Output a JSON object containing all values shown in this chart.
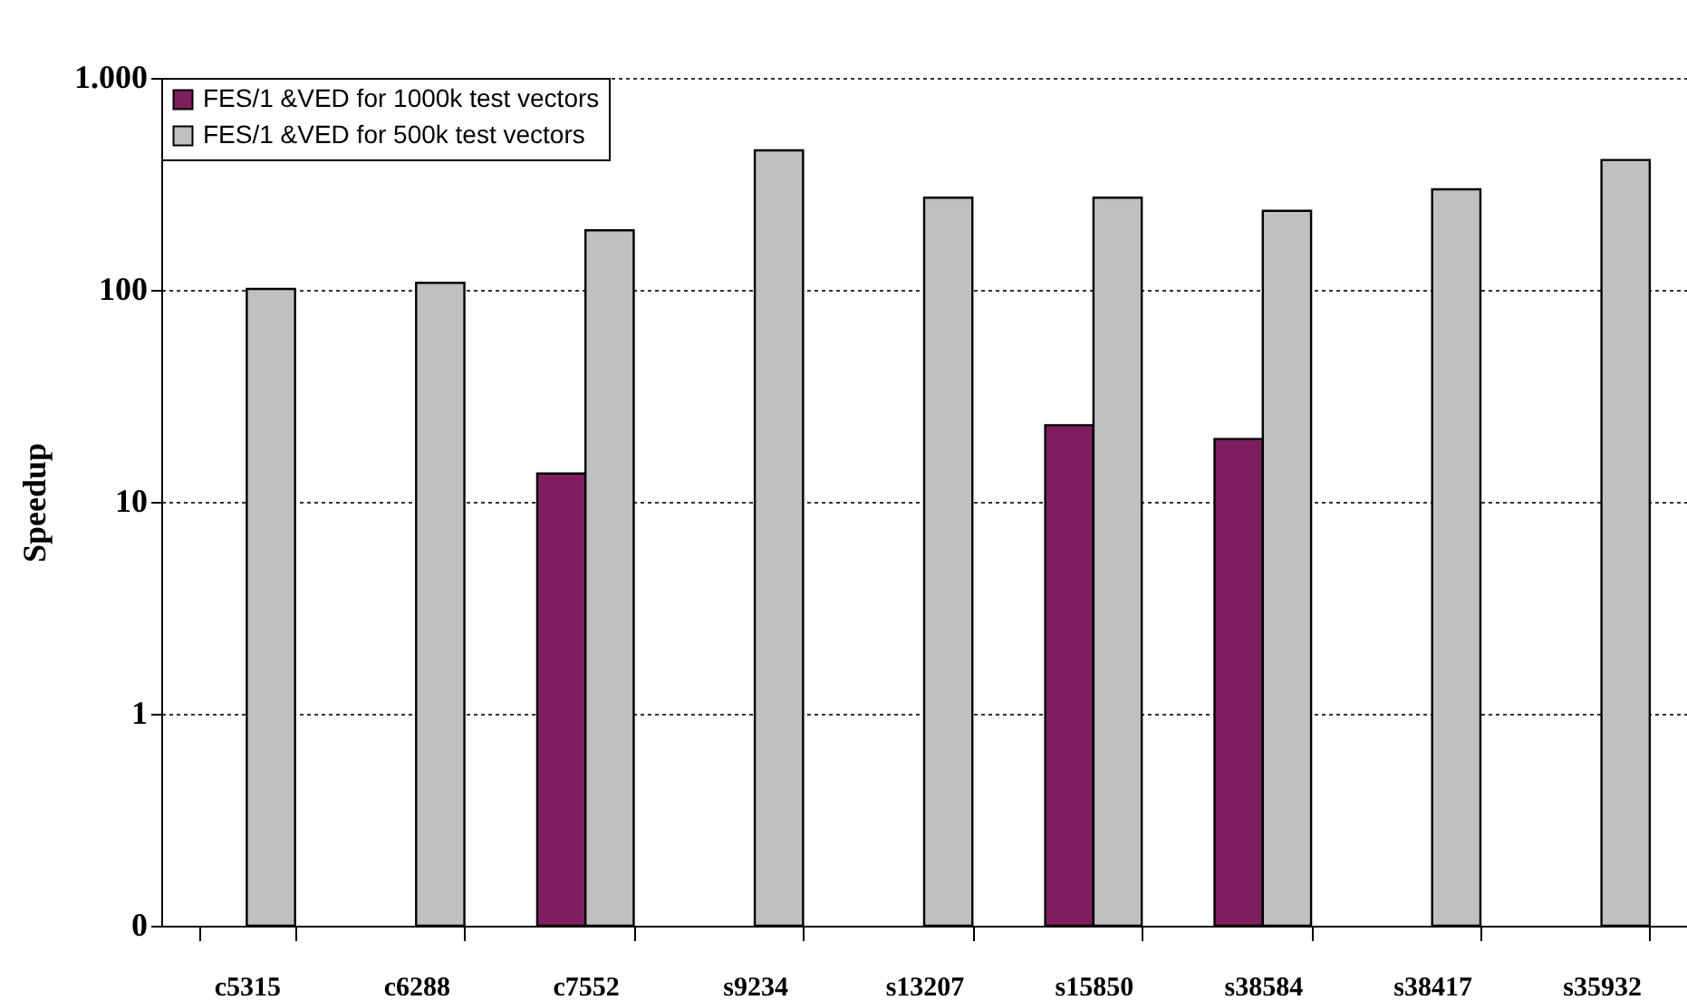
{
  "chart_data": {
    "type": "bar",
    "ylabel": "Speedup",
    "categories": [
      "c5315",
      "c6288",
      "c7552",
      "s9234",
      "s13207",
      "s15850",
      "s38584",
      "s38417",
      "s35932"
    ],
    "series": [
      {
        "name": "FES/1 &VED for 1000k test vectors",
        "color": "#7f1f5f",
        "values": [
          null,
          null,
          13.6,
          null,
          null,
          23,
          19.8,
          null,
          null
        ]
      },
      {
        "name": "FES/1 &VED for 500k test vectors",
        "color": "#c0c0c0",
        "values": [
          101,
          108,
          191,
          455,
          272,
          272,
          236,
          298,
          410
        ]
      }
    ],
    "log": true,
    "ylim": [
      0.1,
      1000
    ],
    "yticks": [
      {
        "value": 0.1,
        "label": "0"
      },
      1,
      10,
      100,
      {
        "value": 1000,
        "label": "1.000"
      }
    ],
    "grid": "y",
    "legend": "top left"
  }
}
